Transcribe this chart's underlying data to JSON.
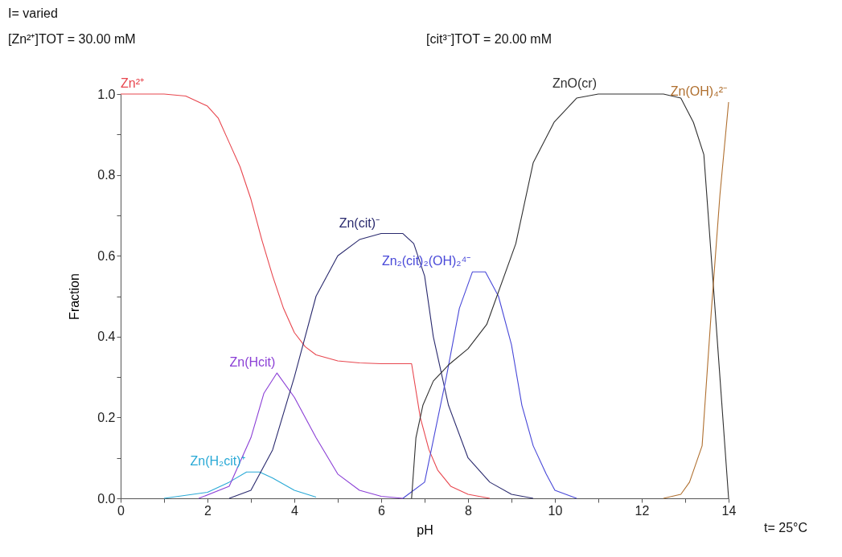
{
  "chart_data": {
    "type": "line",
    "xlabel": "pH",
    "ylabel": "Fraction",
    "xlim": [
      0,
      14
    ],
    "ylim": [
      0,
      1
    ],
    "xticks": [
      0,
      {
        "value": 1,
        "label": null
      },
      2,
      {
        "value": 3,
        "label": null
      },
      4,
      {
        "value": 5,
        "label": null
      },
      6,
      {
        "value": 7,
        "label": null
      },
      8,
      {
        "value": 9,
        "label": null
      },
      10,
      {
        "value": 11,
        "label": null
      },
      12,
      {
        "value": 13,
        "label": null
      },
      14
    ],
    "yticks": [
      {
        "value": 0,
        "label": "0.0"
      },
      {
        "value": 0.1,
        "label": null
      },
      0.2,
      {
        "value": 0.3,
        "label": null
      },
      0.4,
      {
        "value": 0.5,
        "label": null
      },
      0.6,
      {
        "value": 0.7,
        "label": null
      },
      0.8,
      {
        "value": 0.9,
        "label": null
      },
      {
        "value": 1,
        "label": "1.0"
      }
    ],
    "grid": false,
    "annotations": [
      "I= varied",
      "[Zn²⁺]TOT =   30.00 mM",
      "[cit³⁻]TOT =   20.00 mM",
      "t= 25°C"
    ],
    "series": [
      {
        "name": "Zn²⁺",
        "color": "#e8474f",
        "x": [
          0,
          1,
          1.5,
          2,
          2.25,
          2.5,
          2.75,
          3,
          3.25,
          3.5,
          3.75,
          4,
          4.25,
          4.5,
          5,
          5.5,
          6,
          6.7,
          6.9,
          7.1,
          7.3,
          7.6,
          8,
          8.5
        ],
        "values": [
          1,
          1,
          0.995,
          0.97,
          0.94,
          0.88,
          0.82,
          0.74,
          0.64,
          0.55,
          0.47,
          0.41,
          0.375,
          0.355,
          0.34,
          0.335,
          0.333,
          0.333,
          0.2,
          0.12,
          0.07,
          0.03,
          0.01,
          0
        ]
      },
      {
        "name": "Zn(H₂cit)⁺",
        "color": "#29a9d6",
        "x": [
          1,
          2,
          2.5,
          2.9,
          3.2,
          3.5,
          4,
          4.5
        ],
        "values": [
          0,
          0.015,
          0.04,
          0.065,
          0.065,
          0.05,
          0.02,
          0.003
        ]
      },
      {
        "name": "Zn(Hcit)",
        "color": "#8b3fd6",
        "x": [
          1.8,
          2.5,
          3,
          3.3,
          3.6,
          4,
          4.5,
          5,
          5.5,
          6,
          6.5
        ],
        "values": [
          0,
          0.03,
          0.15,
          0.26,
          0.31,
          0.25,
          0.15,
          0.06,
          0.02,
          0.005,
          0
        ]
      },
      {
        "name": "Zn(cit)⁻",
        "color": "#2a2a6e",
        "x": [
          2.5,
          3,
          3.5,
          4,
          4.5,
          5,
          5.5,
          6,
          6.5,
          6.75,
          7,
          7.2,
          7.55,
          8,
          8.5,
          9,
          9.5
        ],
        "values": [
          0,
          0.02,
          0.12,
          0.3,
          0.5,
          0.6,
          0.64,
          0.655,
          0.655,
          0.63,
          0.55,
          0.4,
          0.23,
          0.1,
          0.04,
          0.01,
          0
        ]
      },
      {
        "name": "Zn₂(cit)₂(OH)₂⁴⁻",
        "color": "#4848d8",
        "x": [
          6.5,
          7,
          7.5,
          7.8,
          8.1,
          8.4,
          8.7,
          9,
          9.24,
          9.5,
          9.8,
          10,
          10.5
        ],
        "values": [
          0,
          0.04,
          0.3,
          0.47,
          0.56,
          0.56,
          0.5,
          0.38,
          0.23,
          0.13,
          0.06,
          0.02,
          0
        ]
      },
      {
        "name": "ZnO(cr)",
        "color": "#303030",
        "x": [
          6.7,
          6.8,
          6.96,
          7.2,
          7.55,
          8,
          8.43,
          9.1,
          9.5,
          9.98,
          10.5,
          11,
          12.5,
          12.9,
          13.19,
          13.43,
          13.7,
          14
        ],
        "values": [
          0,
          0.15,
          0.23,
          0.29,
          0.33,
          0.37,
          0.43,
          0.63,
          0.83,
          0.93,
          0.99,
          1,
          1,
          0.99,
          0.93,
          0.85,
          0.45,
          0
        ]
      },
      {
        "name": "Zn(OH)₄²⁻",
        "color": "#b07030",
        "x": [
          12.5,
          12.9,
          13.1,
          13.39,
          13.6,
          13.8,
          14
        ],
        "values": [
          0,
          0.01,
          0.04,
          0.13,
          0.46,
          0.75,
          0.98
        ]
      }
    ]
  }
}
